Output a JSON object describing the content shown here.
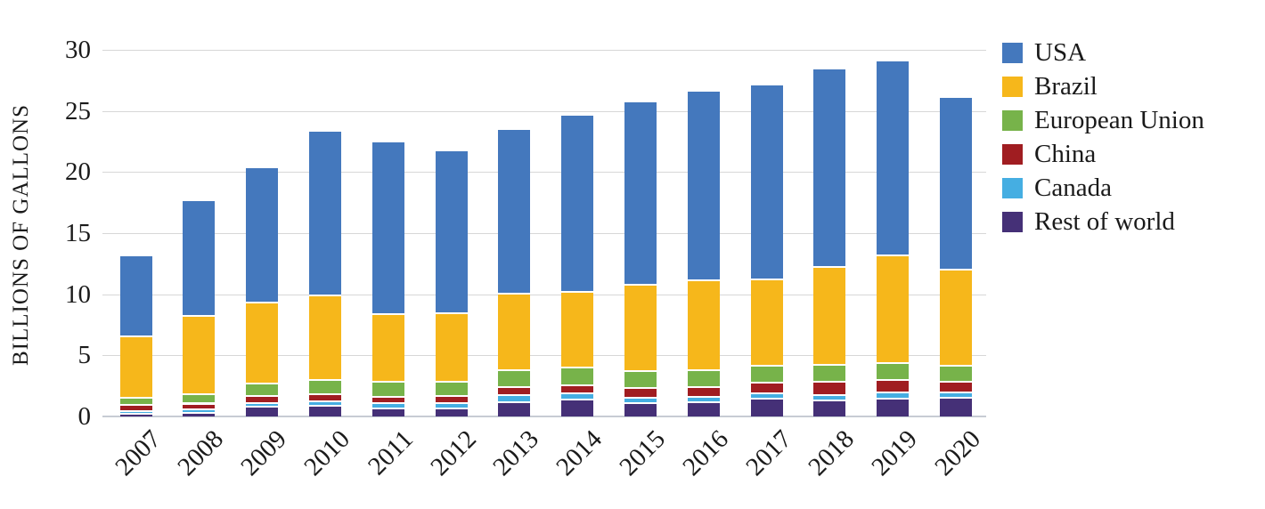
{
  "chart_data": {
    "type": "bar",
    "stacked": true,
    "title": "",
    "xlabel": "",
    "ylabel": "BILLIONS OF GALLONS",
    "ylim": [
      0,
      30
    ],
    "y_ticks": [
      0,
      5,
      10,
      15,
      20,
      25,
      30
    ],
    "grid": true,
    "legend_position": "right",
    "categories": [
      "2007",
      "2008",
      "2009",
      "2010",
      "2011",
      "2012",
      "2013",
      "2014",
      "2015",
      "2016",
      "2017",
      "2018",
      "2019",
      "2020"
    ],
    "series": [
      {
        "name": "USA",
        "color": "#4478BD",
        "values": [
          6.52,
          9.31,
          10.94,
          13.3,
          13.95,
          13.22,
          13.29,
          14.31,
          14.81,
          15.41,
          15.8,
          16.09,
          15.78,
          13.94
        ]
      },
      {
        "name": "Brazil",
        "color": "#F6B71B",
        "values": [
          5.02,
          6.47,
          6.58,
          6.92,
          5.57,
          5.58,
          6.27,
          6.19,
          7.09,
          7.3,
          7.06,
          7.99,
          8.79,
          7.93
        ]
      },
      {
        "name": "European Union",
        "color": "#77B34A",
        "values": [
          0.57,
          0.73,
          1.04,
          1.21,
          1.17,
          1.18,
          1.37,
          1.45,
          1.39,
          1.38,
          1.42,
          1.45,
          1.37,
          1.24
        ]
      },
      {
        "name": "China",
        "color": "#A01D21",
        "values": [
          0.49,
          0.5,
          0.54,
          0.54,
          0.55,
          0.55,
          0.7,
          0.63,
          0.81,
          0.85,
          0.88,
          1.05,
          1.03,
          0.93
        ]
      },
      {
        "name": "Canada",
        "color": "#45AEE2",
        "values": [
          0.21,
          0.24,
          0.29,
          0.36,
          0.46,
          0.45,
          0.52,
          0.51,
          0.44,
          0.44,
          0.45,
          0.46,
          0.52,
          0.43
        ]
      },
      {
        "name": "Rest of world",
        "color": "#453077",
        "values": [
          0.32,
          0.39,
          0.91,
          0.98,
          0.7,
          0.75,
          1.27,
          1.49,
          1.15,
          1.22,
          1.5,
          1.37,
          1.54,
          1.59
        ]
      }
    ],
    "stack_order_bottom_to_top": [
      "Rest of world",
      "Canada",
      "China",
      "European Union",
      "Brazil",
      "USA"
    ],
    "totals": [
      13.13,
      17.64,
      20.3,
      23.31,
      22.4,
      21.73,
      23.42,
      24.58,
      25.69,
      26.6,
      27.11,
      28.41,
      29.03,
      26.06
    ]
  },
  "colors": {
    "gridline": "#d7d7d7",
    "axis_line": "#c7ccd4",
    "text": "#1a1a1a",
    "background": "#ffffff"
  }
}
